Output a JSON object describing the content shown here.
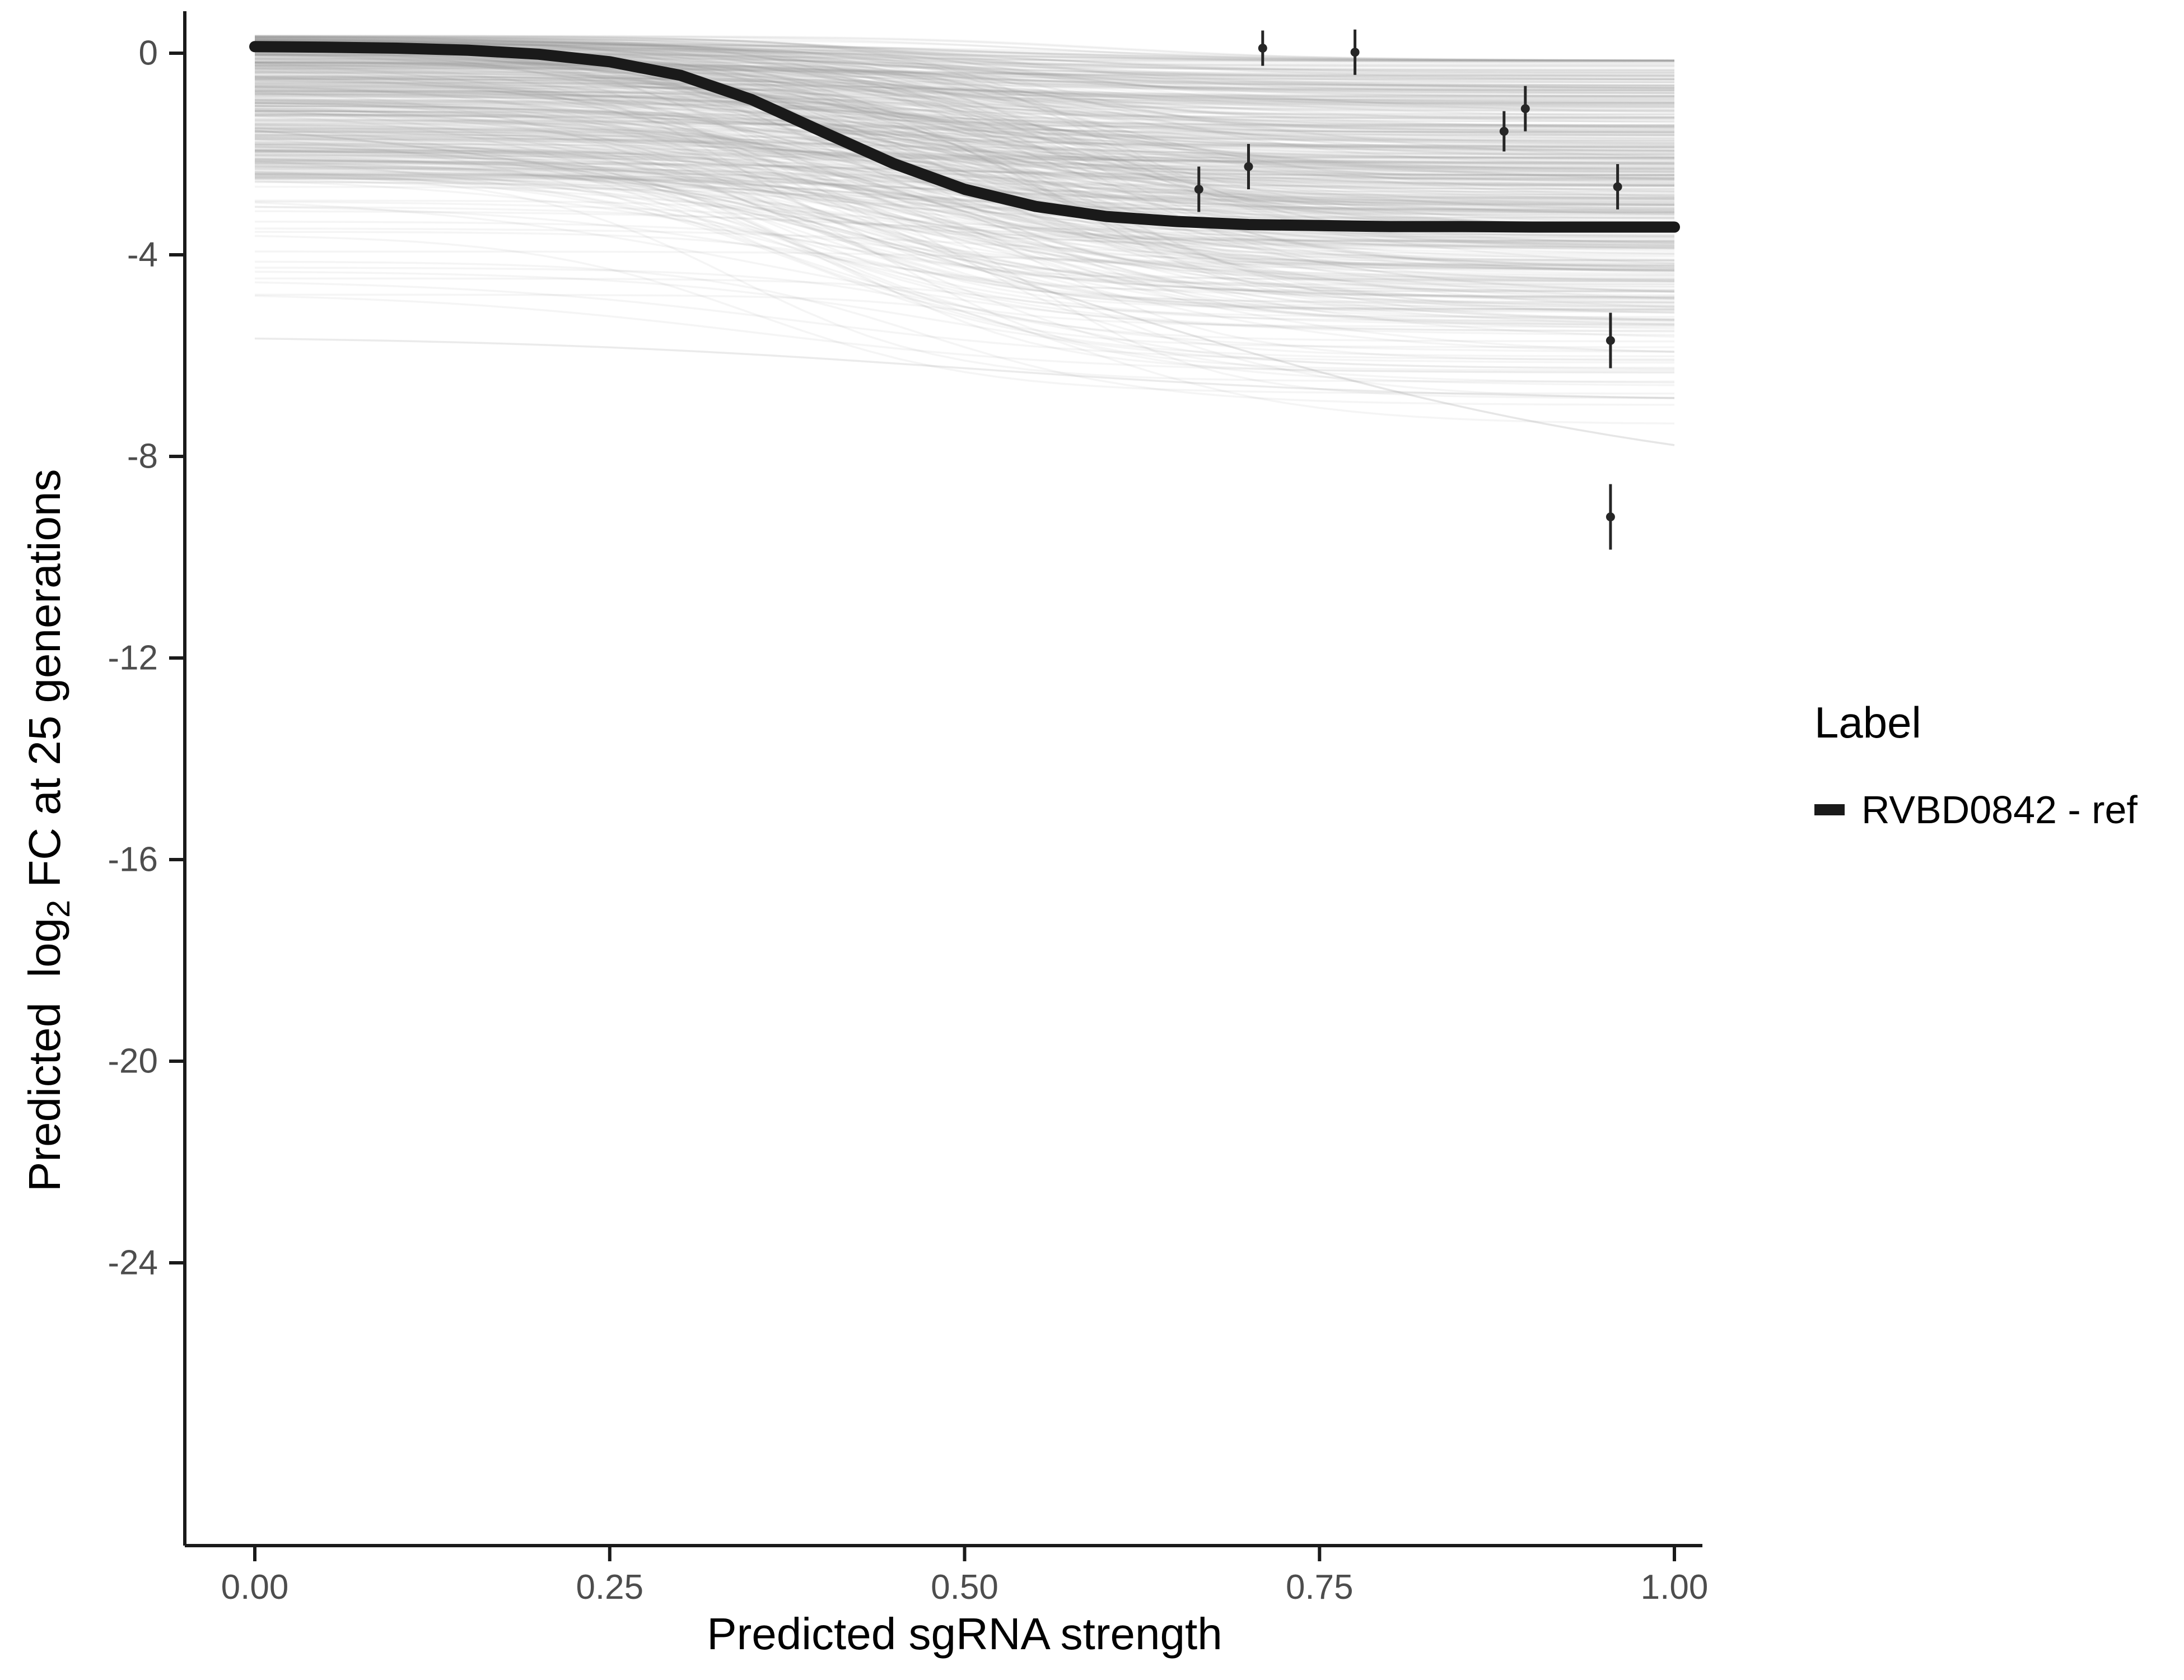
{
  "chart_data": {
    "type": "line",
    "title": "",
    "xlabel": "Predicted sgRNA strength",
    "ylabel": "Predicted  log2 FC at 25 generations",
    "ylabel_parts": {
      "pre": "Predicted  log",
      "sub": "2",
      "post": " FC at 25 generations"
    },
    "xlim": [
      0,
      1
    ],
    "ylim": [
      -29.6,
      0.9
    ],
    "grid": false,
    "x_tick_values": [
      0,
      0.25,
      0.5,
      0.75,
      1
    ],
    "x_tick_labels": [
      "0.00",
      "0.25",
      "0.50",
      "0.75",
      "1.00"
    ],
    "y_tick_values": [
      0,
      -4,
      -8,
      -12,
      -16,
      -20,
      -24
    ],
    "y_tick_labels": [
      "0",
      "-4",
      "-8",
      "-12",
      "-16",
      "-20",
      "-24"
    ],
    "axis_color": "#1a1a1a",
    "tick_label_color": "#4d4d4d",
    "point_color": "#262626",
    "legend": {
      "title": "Label",
      "position": "right",
      "entries": [
        {
          "label": "RVBD0842 - ref",
          "color": "#1a1a1a"
        }
      ]
    },
    "ref_curve": {
      "name": "RVBD0842 - ref",
      "color": "#1a1a1a",
      "width": 20,
      "points": [
        {
          "x": 0.0,
          "y": 0.13
        },
        {
          "x": 0.05,
          "y": 0.12
        },
        {
          "x": 0.1,
          "y": 0.1
        },
        {
          "x": 0.15,
          "y": 0.06
        },
        {
          "x": 0.2,
          "y": -0.02
        },
        {
          "x": 0.25,
          "y": -0.17
        },
        {
          "x": 0.3,
          "y": -0.44
        },
        {
          "x": 0.35,
          "y": -0.92
        },
        {
          "x": 0.4,
          "y": -1.56
        },
        {
          "x": 0.45,
          "y": -2.19
        },
        {
          "x": 0.5,
          "y": -2.7
        },
        {
          "x": 0.55,
          "y": -3.04
        },
        {
          "x": 0.6,
          "y": -3.24
        },
        {
          "x": 0.65,
          "y": -3.34
        },
        {
          "x": 0.7,
          "y": -3.4
        },
        {
          "x": 0.75,
          "y": -3.42
        },
        {
          "x": 0.8,
          "y": -3.44
        },
        {
          "x": 0.85,
          "y": -3.44
        },
        {
          "x": 0.9,
          "y": -3.45
        },
        {
          "x": 0.95,
          "y": -3.45
        },
        {
          "x": 1.0,
          "y": -3.45
        }
      ]
    },
    "posterior_ensemble": {
      "description": "hundreds of semi-transparent grey posterior sigmoid draws forming a band",
      "count": 520,
      "color": "#8f8f8f",
      "opacity": 0.09,
      "line_width": 3.5,
      "start_range": [
        -5.8,
        0.35
      ],
      "end_range": [
        -8.8,
        -0.15
      ],
      "midpoint_range": [
        0.33,
        0.61
      ],
      "slope_range": [
        7,
        16
      ]
    },
    "observed_points": [
      {
        "x": 0.665,
        "y": -2.7,
        "err": 0.45
      },
      {
        "x": 0.7,
        "y": -2.25,
        "err": 0.45
      },
      {
        "x": 0.71,
        "y": 0.1,
        "err": 0.35
      },
      {
        "x": 0.775,
        "y": 0.02,
        "err": 0.45
      },
      {
        "x": 0.88,
        "y": -1.55,
        "err": 0.4
      },
      {
        "x": 0.895,
        "y": -1.1,
        "err": 0.45
      },
      {
        "x": 0.955,
        "y": -5.7,
        "err": 0.55
      },
      {
        "x": 0.96,
        "y": -2.65,
        "err": 0.45
      },
      {
        "x": 0.955,
        "y": -9.2,
        "err": 0.65
      }
    ]
  }
}
